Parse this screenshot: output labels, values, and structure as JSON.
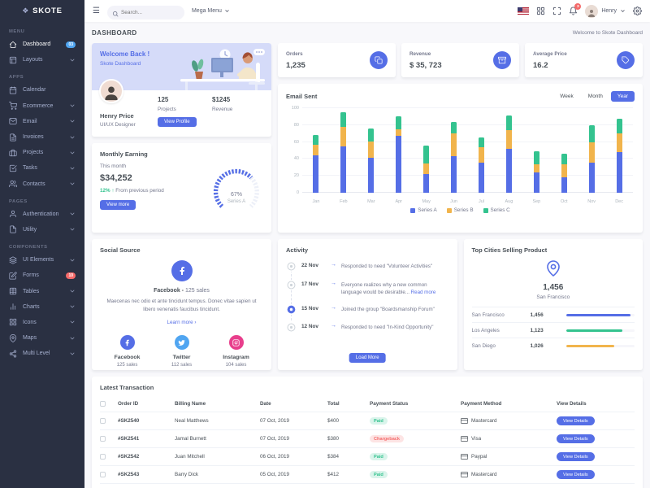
{
  "app": {
    "logo_text": "SKOTE",
    "primary_color": "#556ee6"
  },
  "header": {
    "search_placeholder": "Search...",
    "mega_menu_label": "Mega Menu",
    "user_name": "Henry",
    "notification_count": "3"
  },
  "breadcrumb": {
    "title": "DASHBOARD",
    "right_text": "Welcome to Skote Dashboard"
  },
  "sidebar": {
    "sections": [
      {
        "label": "MENU",
        "items": [
          {
            "label": "Dashboard",
            "icon": "home-icon",
            "badge": "03",
            "badge_color": "#50a5f1",
            "active": true
          },
          {
            "label": "Layouts",
            "icon": "layouts-icon",
            "chevron": true
          }
        ]
      },
      {
        "label": "APPS",
        "items": [
          {
            "label": "Calendar",
            "icon": "calendar-icon"
          },
          {
            "label": "Ecommerce",
            "icon": "cart-icon",
            "chevron": true
          },
          {
            "label": "Email",
            "icon": "envelope-icon",
            "chevron": true
          },
          {
            "label": "Invoices",
            "icon": "invoice-icon",
            "chevron": true
          },
          {
            "label": "Projects",
            "icon": "briefcase-icon",
            "chevron": true
          },
          {
            "label": "Tasks",
            "icon": "tasks-icon",
            "chevron": true
          },
          {
            "label": "Contacts",
            "icon": "contacts-icon",
            "chevron": true
          }
        ]
      },
      {
        "label": "PAGES",
        "items": [
          {
            "label": "Authentication",
            "icon": "user-icon",
            "chevron": true
          },
          {
            "label": "Utility",
            "icon": "file-icon",
            "chevron": true
          }
        ]
      },
      {
        "label": "COMPONENTS",
        "items": [
          {
            "label": "UI Elements",
            "icon": "layers-icon",
            "chevron": true
          },
          {
            "label": "Forms",
            "icon": "edit-icon",
            "badge": "10",
            "badge_color": "#f46a6a"
          },
          {
            "label": "Tables",
            "icon": "table-icon",
            "chevron": true
          },
          {
            "label": "Charts",
            "icon": "bar-chart-icon",
            "chevron": true
          },
          {
            "label": "Icons",
            "icon": "grid-icon",
            "chevron": true
          },
          {
            "label": "Maps",
            "icon": "map-pin-icon",
            "chevron": true
          },
          {
            "label": "Multi Level",
            "icon": "share-icon",
            "chevron": true
          }
        ]
      }
    ]
  },
  "welcome_card": {
    "title": "Welcome Back !",
    "subtitle": "Skote Dashboard",
    "user_name": "Henry Price",
    "user_role": "UI/UX Designer",
    "projects_value": "125",
    "projects_label": "Projects",
    "revenue_value": "$1245",
    "revenue_label": "Revenue",
    "button_label": "View Profile"
  },
  "monthly_earning": {
    "title": "Monthly Earning",
    "period_label": "This month",
    "amount": "$34,252",
    "delta": "12%",
    "delta_note": "From previous period",
    "button_label": "View more",
    "gauge_percent": "67%",
    "gauge_label": "Series A"
  },
  "social_source": {
    "title": "Social Source",
    "highlight_name": "Facebook -",
    "highlight_sales": "125 sales",
    "description": "Maecenas nec odio et ante tincidunt tempus. Donec vitae sapien ut libero venenatis faucibus tincidunt.",
    "link_label": "Learn more",
    "items": [
      {
        "name": "Facebook",
        "sales": "125 sales",
        "color": "#556ee6",
        "icon": "facebook-icon"
      },
      {
        "name": "Twitter",
        "sales": "112 sales",
        "color": "#50a5f1",
        "icon": "twitter-icon"
      },
      {
        "name": "Instagram",
        "sales": "104 sales",
        "color": "#e83e8c",
        "icon": "instagram-icon"
      }
    ]
  },
  "stats": [
    {
      "label": "Orders",
      "value": "1,235",
      "icon": "copy-icon"
    },
    {
      "label": "Revenue",
      "value": "$ 35, 723",
      "icon": "archive-icon"
    },
    {
      "label": "Average Price",
      "value": "16.2",
      "icon": "tag-icon"
    }
  ],
  "email_sent": {
    "title": "Email Sent",
    "range_buttons": [
      "Week",
      "Month",
      "Year"
    ],
    "active_range": "Year"
  },
  "chart_data": [
    {
      "type": "bar",
      "stacked": true,
      "title": "Email Sent",
      "categories": [
        "Jan",
        "Feb",
        "Mar",
        "Apr",
        "May",
        "Jun",
        "Jul",
        "Aug",
        "Sep",
        "Oct",
        "Nov",
        "Dec"
      ],
      "series": [
        {
          "name": "Series A",
          "color": "#556ee6",
          "values": [
            44,
            55,
            41,
            67,
            22,
            43,
            36,
            52,
            24,
            18,
            36,
            48
          ]
        },
        {
          "name": "Series B",
          "color": "#f1b44c",
          "values": [
            13,
            23,
            20,
            8,
            13,
            27,
            18,
            22,
            10,
            16,
            24,
            22
          ]
        },
        {
          "name": "Series C",
          "color": "#34c38f",
          "values": [
            11,
            17,
            15,
            15,
            21,
            14,
            11,
            17,
            15,
            12,
            20,
            18
          ]
        }
      ],
      "ylim": [
        0,
        100
      ],
      "yticks": [
        0,
        20,
        40,
        60,
        80,
        100
      ],
      "grid": true,
      "legend_position": "bottom"
    },
    {
      "type": "radial",
      "title": "Monthly Earning",
      "value": 67,
      "label": "Series A",
      "color": "#556ee6",
      "start_angle": -135,
      "end_angle": 135
    }
  ],
  "activity": {
    "title": "Activity",
    "items": [
      {
        "date": "22 Nov",
        "text": "Responded to need \"Volunteer Activities\"",
        "active": false
      },
      {
        "date": "17 Nov",
        "text": "Everyone realizes why a new common language would be desirable... ",
        "link": "Read more",
        "active": false
      },
      {
        "date": "15 Nov",
        "text": "Joined the group \"Boardsmanship Forum\"",
        "active": true
      },
      {
        "date": "12 Nov",
        "text": "Responded to need \"In-Kind Opportunity\"",
        "active": false
      }
    ],
    "button_label": "Load More"
  },
  "top_cities": {
    "title": "Top Cities Selling Product",
    "highlight_value": "1,456",
    "highlight_city": "San Francisco",
    "rows": [
      {
        "city": "San Francisco",
        "value": "1,456",
        "color": "#556ee6",
        "percent": 94
      },
      {
        "city": "Los Angeles",
        "value": "1,123",
        "color": "#34c38f",
        "percent": 82
      },
      {
        "city": "San Diego",
        "value": "1,026",
        "color": "#f1b44c",
        "percent": 70
      }
    ]
  },
  "transactions": {
    "title": "Latest Transaction",
    "columns": [
      "Order ID",
      "Billing Name",
      "Date",
      "Total",
      "Payment Status",
      "Payment Method",
      "View Details"
    ],
    "button_label": "View Details",
    "rows": [
      {
        "order_id": "#SK2540",
        "name": "Neal Matthews",
        "date": "07 Oct, 2019",
        "total": "$400",
        "status": "Paid",
        "status_color": "#34c38f",
        "method": "Mastercard"
      },
      {
        "order_id": "#SK2541",
        "name": "Jamal Burnett",
        "date": "07 Oct, 2019",
        "total": "$380",
        "status": "Chargeback",
        "status_color": "#f46a6a",
        "method": "Visa"
      },
      {
        "order_id": "#SK2542",
        "name": "Juan Mitchell",
        "date": "06 Oct, 2019",
        "total": "$384",
        "status": "Paid",
        "status_color": "#34c38f",
        "method": "Paypal"
      },
      {
        "order_id": "#SK2543",
        "name": "Barry Dick",
        "date": "05 Oct, 2019",
        "total": "$412",
        "status": "Paid",
        "status_color": "#34c38f",
        "method": "Mastercard"
      }
    ]
  }
}
